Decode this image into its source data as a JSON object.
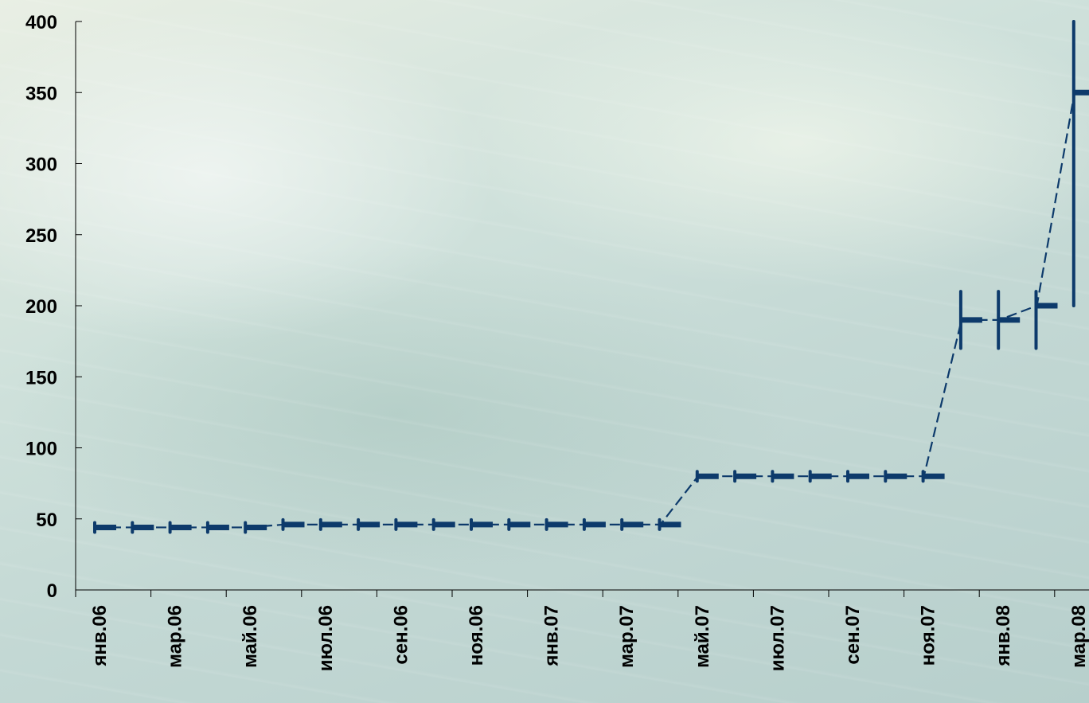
{
  "chart_data": {
    "type": "line",
    "title": "",
    "xlabel": "",
    "ylabel": "",
    "ylim": [
      0,
      400
    ],
    "yticks": [
      0,
      50,
      100,
      150,
      200,
      250,
      300,
      350,
      400
    ],
    "xtick_labels": [
      "янв.06",
      "мар.06",
      "май.06",
      "июл.06",
      "сен.06",
      "ноя.06",
      "янв.07",
      "мар.07",
      "май.07",
      "июл.07",
      "сен.07",
      "ноя.07",
      "янв.08",
      "мар.08"
    ],
    "grid": false,
    "legend": "none",
    "series_color": "#0d3a6b",
    "series": [
      {
        "values": [
          {
            "x": "янв.06",
            "y": 44
          },
          {
            "x": "фев.06",
            "y": 44
          },
          {
            "x": "мар.06",
            "y": 44
          },
          {
            "x": "апр.06",
            "y": 44
          },
          {
            "x": "май.06",
            "y": 44
          },
          {
            "x": "июн.06",
            "y": 46
          },
          {
            "x": "июл.06",
            "y": 46
          },
          {
            "x": "авг.06",
            "y": 46
          },
          {
            "x": "сен.06",
            "y": 46
          },
          {
            "x": "окт.06",
            "y": 46
          },
          {
            "x": "ноя.06",
            "y": 46
          },
          {
            "x": "дек.06",
            "y": 46
          },
          {
            "x": "янв.07",
            "y": 46
          },
          {
            "x": "фев.07",
            "y": 46
          },
          {
            "x": "мар.07",
            "y": 46
          },
          {
            "x": "апр.07",
            "y": 46
          },
          {
            "x": "май.07",
            "y": 80
          },
          {
            "x": "июн.07",
            "y": 80
          },
          {
            "x": "июл.07",
            "y": 80
          },
          {
            "x": "авг.07",
            "y": 80
          },
          {
            "x": "сен.07",
            "y": 80
          },
          {
            "x": "окт.07",
            "y": 80
          },
          {
            "x": "ноя.07",
            "y": 80
          },
          {
            "x": "дек.07",
            "y": 190,
            "low": 170,
            "high": 210
          },
          {
            "x": "янв.08",
            "y": 190,
            "low": 170,
            "high": 210
          },
          {
            "x": "фев.08",
            "y": 200,
            "low": 170,
            "high": 210
          },
          {
            "x": "мар.08",
            "y": 350,
            "low": 200,
            "high": 400
          }
        ]
      }
    ]
  }
}
